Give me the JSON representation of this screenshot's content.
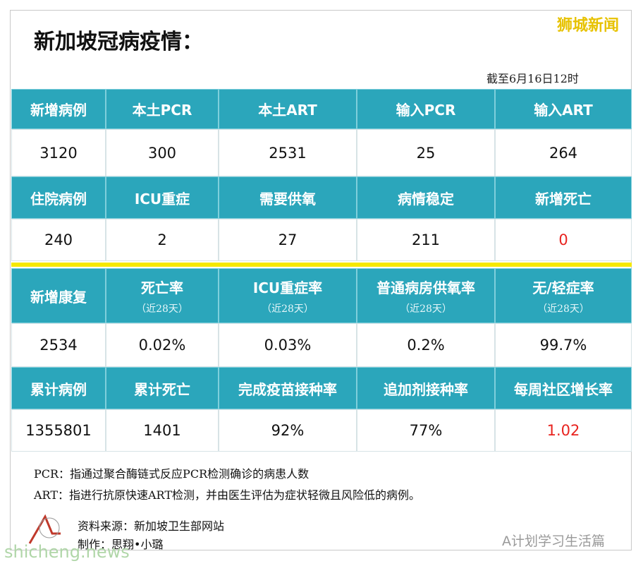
{
  "header": {
    "title": "新加坡冠病疫情：",
    "brand": "狮城新闻",
    "as_of": "截至6月16日12时"
  },
  "table": {
    "highlight_color": "#e8231f",
    "blocks": [
      {
        "headers": [
          "新增病例",
          "本土PCR",
          "本土ART",
          "输入PCR",
          "输入ART"
        ],
        "values": [
          "3120",
          "300",
          "2531",
          "25",
          "264"
        ]
      },
      {
        "headers": [
          "住院病例",
          "ICU重症",
          "需要供氧",
          "病情稳定",
          "新增死亡"
        ],
        "values": [
          "240",
          "2",
          "27",
          "211",
          "0"
        ],
        "highlight_columns": [
          4
        ]
      },
      {
        "headers": [
          "新增康复",
          "死亡率",
          "ICU重症率",
          "普通病房供氧率",
          "无/轻症率"
        ],
        "notes": [
          null,
          "（近28天）",
          "（近28天）",
          "（近28天）",
          "（近28天）"
        ],
        "values": [
          "2534",
          "0.02%",
          "0.03%",
          "0.2%",
          "99.7%"
        ]
      },
      {
        "headers": [
          "累计病例",
          "累计死亡",
          "完成疫苗接种率",
          "追加剂接种率",
          "每周社区增长率"
        ],
        "values": [
          "1355801",
          "1401",
          "92%",
          "77%",
          "1.02"
        ],
        "highlight_columns": [
          4
        ]
      }
    ]
  },
  "footnotes": [
    "PCR：指通过聚合酶链式反应PCR检测确诊的病患人数",
    "ART：指进行抗原快速ART检测，并由医生评估为症状轻微且风险低的病例。"
  ],
  "credits": {
    "source": "资料来源：新加坡卫生部网站",
    "maker": "制作：思翔•小璐"
  },
  "watermark": "A计划学习生活篇",
  "site": "shicheng.news"
}
